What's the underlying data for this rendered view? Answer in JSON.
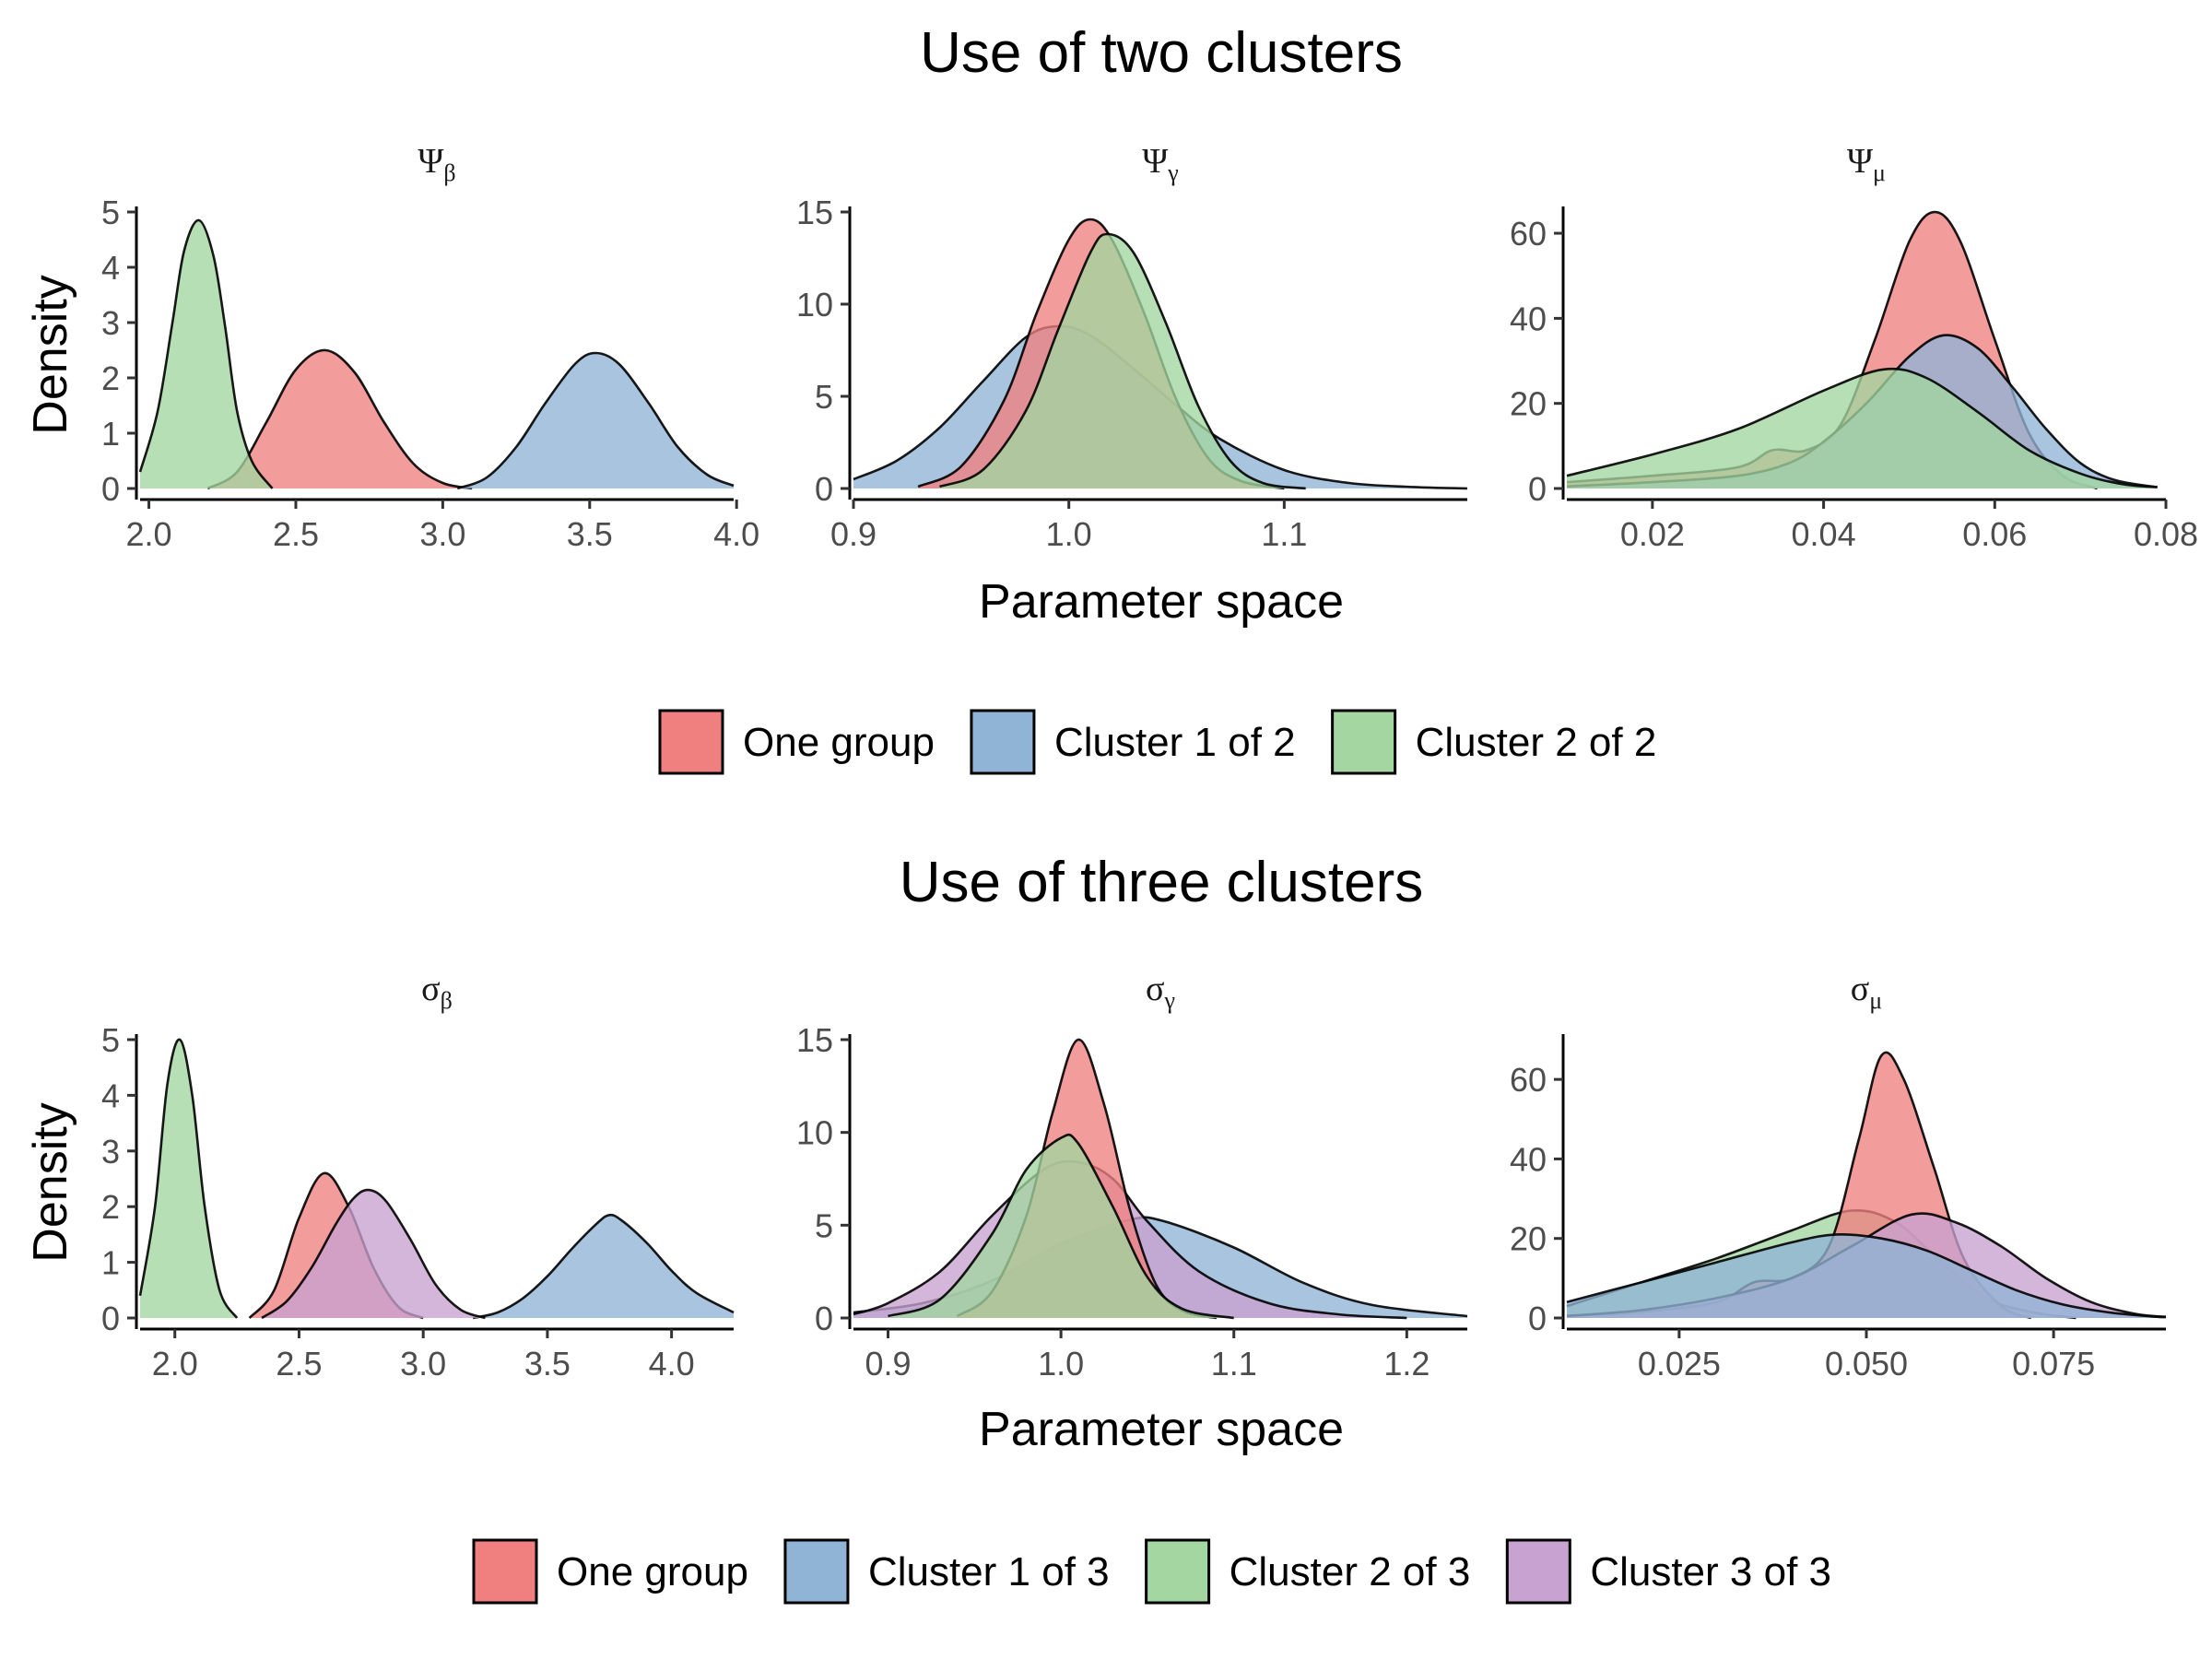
{
  "colors": {
    "one_group": "#F08080",
    "cluster_1": "#8FB4D6",
    "cluster_2": "#A3D6A0",
    "cluster_3": "#C8A2D0"
  },
  "chart_data": [
    {
      "type": "area",
      "section_title": "Use of two clusters",
      "xlabel": "Parameter space",
      "ylabel": "Density",
      "legend_position": "bottom",
      "legend": [
        {
          "key": "one_group",
          "label": "One group"
        },
        {
          "key": "cluster_1",
          "label": "Cluster 1 of 2"
        },
        {
          "key": "cluster_2",
          "label": "Cluster 2 of 2"
        }
      ],
      "panels": [
        {
          "title_base": "Ψ",
          "title_sub": "β",
          "xlim": [
            1.97,
            3.99
          ],
          "ylim": [
            0,
            5
          ],
          "xticks": [
            2.0,
            2.5,
            3.0,
            3.5,
            4.0
          ],
          "xtick_labels": [
            "2.0",
            "2.5",
            "3.0",
            "3.5",
            "4.0"
          ],
          "yticks": [
            0,
            1,
            2,
            3,
            4,
            5
          ],
          "ytick_labels": [
            "0",
            "1",
            "2",
            "3",
            "4",
            "5"
          ],
          "series": [
            {
              "key": "one_group",
              "x": [
                2.2,
                2.3,
                2.4,
                2.5,
                2.6,
                2.7,
                2.8,
                2.9,
                3.0,
                3.1
              ],
              "y": [
                0,
                0.3,
                1.2,
                2.15,
                2.5,
                2.1,
                1.2,
                0.45,
                0.1,
                0
              ]
            },
            {
              "key": "cluster_1",
              "x": [
                3.05,
                3.15,
                3.25,
                3.35,
                3.45,
                3.52,
                3.6,
                3.7,
                3.8,
                3.9,
                3.99
              ],
              "y": [
                0,
                0.2,
                0.75,
                1.55,
                2.25,
                2.45,
                2.25,
                1.55,
                0.75,
                0.25,
                0.05
              ]
            },
            {
              "key": "cluster_2",
              "x": [
                1.97,
                2.03,
                2.08,
                2.12,
                2.17,
                2.22,
                2.26,
                2.3,
                2.35,
                2.42
              ],
              "y": [
                0.3,
                1.4,
                3.0,
                4.3,
                4.85,
                4.2,
                2.9,
                1.4,
                0.5,
                0
              ]
            }
          ]
        },
        {
          "title_base": "Ψ",
          "title_sub": "γ",
          "xlim": [
            0.9,
            1.185
          ],
          "ylim": [
            0,
            15
          ],
          "xticks": [
            0.9,
            1.0,
            1.1
          ],
          "xtick_labels": [
            "0.9",
            "1.0",
            "1.1"
          ],
          "yticks": [
            0,
            5,
            10,
            15
          ],
          "ytick_labels": [
            "0",
            "5",
            "10",
            "15"
          ],
          "series": [
            {
              "key": "cluster_1",
              "x": [
                0.9,
                0.92,
                0.94,
                0.96,
                0.98,
                0.995,
                1.01,
                1.03,
                1.05,
                1.07,
                1.1,
                1.13,
                1.16,
                1.185
              ],
              "y": [
                0.5,
                1.5,
                3.3,
                5.8,
                8.2,
                8.8,
                8.3,
                6.5,
                4.5,
                2.7,
                1.0,
                0.3,
                0.08,
                0
              ]
            },
            {
              "key": "one_group",
              "x": [
                0.93,
                0.95,
                0.97,
                0.985,
                1.0,
                1.01,
                1.02,
                1.035,
                1.05,
                1.065,
                1.08,
                1.1
              ],
              "y": [
                0.1,
                1.2,
                4.8,
                9.5,
                13.5,
                14.6,
                13.5,
                9.5,
                4.8,
                1.6,
                0.4,
                0
              ]
            },
            {
              "key": "cluster_2",
              "x": [
                0.94,
                0.96,
                0.98,
                0.995,
                1.01,
                1.018,
                1.03,
                1.045,
                1.06,
                1.075,
                1.09,
                1.11
              ],
              "y": [
                0.1,
                1.0,
                4.2,
                8.6,
                12.8,
                13.8,
                12.8,
                9.0,
                4.5,
                1.5,
                0.3,
                0
              ]
            }
          ]
        },
        {
          "title_base": "Ψ",
          "title_sub": "μ",
          "xlim": [
            0.01,
            0.08
          ],
          "ylim": [
            0,
            65
          ],
          "xticks": [
            0.02,
            0.04,
            0.06,
            0.08
          ],
          "xtick_labels": [
            "0.02",
            "0.04",
            "0.06",
            "0.08"
          ],
          "yticks": [
            0,
            20,
            40,
            60
          ],
          "ytick_labels": [
            "0",
            "20",
            "40",
            "60"
          ],
          "series": [
            {
              "key": "one_group",
              "x": [
                0.01,
                0.02,
                0.03,
                0.034,
                0.038,
                0.042,
                0.046,
                0.05,
                0.053,
                0.056,
                0.06,
                0.064,
                0.068,
                0.072
              ],
              "y": [
                1.5,
                3,
                5,
                9,
                9,
                15,
                35,
                58,
                65,
                58,
                35,
                13,
                3,
                0
              ]
            },
            {
              "key": "cluster_1",
              "x": [
                0.01,
                0.02,
                0.03,
                0.036,
                0.04,
                0.045,
                0.05,
                0.054,
                0.058,
                0.062,
                0.066,
                0.07,
                0.074,
                0.079
              ],
              "y": [
                0.5,
                1.5,
                3,
                6,
                11,
                20,
                31,
                36,
                33,
                24,
                14,
                6,
                2,
                0.3
              ]
            },
            {
              "key": "cluster_2",
              "x": [
                0.01,
                0.02,
                0.03,
                0.04,
                0.047,
                0.052,
                0.058,
                0.064,
                0.07,
                0.075,
                0.079
              ],
              "y": [
                3,
                8,
                14,
                23,
                28,
                26,
                18,
                9,
                3.5,
                1,
                0.3
              ]
            }
          ]
        }
      ]
    },
    {
      "type": "area",
      "section_title": "Use of three clusters",
      "xlabel": "Parameter space",
      "ylabel": "Density",
      "legend_position": "bottom",
      "legend": [
        {
          "key": "one_group",
          "label": "One group"
        },
        {
          "key": "cluster_1",
          "label": "Cluster 1 of 3"
        },
        {
          "key": "cluster_2",
          "label": "Cluster 2 of 3"
        },
        {
          "key": "cluster_3",
          "label": "Cluster 3 of 3"
        }
      ],
      "panels": [
        {
          "title_base": "σ",
          "title_sub": "β",
          "xlim": [
            1.86,
            4.25
          ],
          "ylim": [
            0,
            5
          ],
          "xticks": [
            2.0,
            2.5,
            3.0,
            3.5,
            4.0
          ],
          "xtick_labels": [
            "2.0",
            "2.5",
            "3.0",
            "3.5",
            "4.0"
          ],
          "yticks": [
            0,
            1,
            2,
            3,
            4,
            5
          ],
          "ytick_labels": [
            "0",
            "1",
            "2",
            "3",
            "4",
            "5"
          ],
          "series": [
            {
              "key": "one_group",
              "x": [
                2.3,
                2.4,
                2.5,
                2.6,
                2.7,
                2.8,
                2.9,
                3.0
              ],
              "y": [
                0,
                0.5,
                1.8,
                2.6,
                2.0,
                0.9,
                0.2,
                0
              ]
            },
            {
              "key": "cluster_1",
              "x": [
                3.2,
                3.3,
                3.4,
                3.5,
                3.6,
                3.7,
                3.75,
                3.8,
                3.9,
                4.0,
                4.1,
                4.25
              ],
              "y": [
                0,
                0.1,
                0.35,
                0.75,
                1.25,
                1.7,
                1.85,
                1.75,
                1.35,
                0.85,
                0.45,
                0.1
              ]
            },
            {
              "key": "cluster_2",
              "x": [
                1.86,
                1.92,
                1.97,
                2.02,
                2.07,
                2.12,
                2.18,
                2.25
              ],
              "y": [
                0.4,
                2.0,
                4.2,
                5.0,
                4.0,
                2.0,
                0.5,
                0
              ]
            },
            {
              "key": "cluster_3",
              "x": [
                2.35,
                2.45,
                2.55,
                2.65,
                2.72,
                2.78,
                2.85,
                2.95,
                3.05,
                3.15,
                3.25
              ],
              "y": [
                0,
                0.3,
                0.9,
                1.7,
                2.15,
                2.3,
                2.1,
                1.4,
                0.6,
                0.15,
                0
              ]
            }
          ]
        },
        {
          "title_base": "σ",
          "title_sub": "γ",
          "xlim": [
            0.88,
            1.235
          ],
          "ylim": [
            0,
            15
          ],
          "xticks": [
            0.9,
            1.0,
            1.1,
            1.2
          ],
          "xtick_labels": [
            "0.9",
            "1.0",
            "1.1",
            "1.2"
          ],
          "yticks": [
            0,
            5,
            10,
            15
          ],
          "ytick_labels": [
            "0",
            "5",
            "10",
            "15"
          ],
          "series": [
            {
              "key": "cluster_1",
              "x": [
                0.88,
                0.92,
                0.96,
                1.0,
                1.04,
                1.06,
                1.1,
                1.14,
                1.18,
                1.235
              ],
              "y": [
                0.3,
                0.8,
                2.0,
                4.0,
                5.3,
                5.2,
                3.8,
                1.9,
                0.7,
                0.1
              ]
            },
            {
              "key": "cluster_3",
              "x": [
                0.88,
                0.9,
                0.93,
                0.96,
                0.99,
                1.01,
                1.03,
                1.05,
                1.08,
                1.12,
                1.16,
                1.2
              ],
              "y": [
                0.2,
                0.8,
                2.5,
                5.5,
                8.0,
                8.4,
                7.5,
                5.2,
                2.5,
                0.8,
                0.2,
                0
              ]
            },
            {
              "key": "one_group",
              "x": [
                0.94,
                0.96,
                0.98,
                0.995,
                1.01,
                1.025,
                1.04,
                1.055,
                1.07,
                1.09
              ],
              "y": [
                0.1,
                1.4,
                5.5,
                11.0,
                15.0,
                11.5,
                5.8,
                1.8,
                0.4,
                0
              ]
            },
            {
              "key": "cluster_2",
              "x": [
                0.9,
                0.93,
                0.96,
                0.98,
                1.0,
                1.01,
                1.03,
                1.05,
                1.07,
                1.1
              ],
              "y": [
                0.1,
                1.0,
                4.5,
                8.0,
                9.7,
                9.4,
                6.0,
                2.2,
                0.5,
                0
              ]
            }
          ]
        },
        {
          "title_base": "σ",
          "title_sub": "μ",
          "xlim": [
            0.01,
            0.09
          ],
          "ylim": [
            0,
            70
          ],
          "xticks": [
            0.025,
            0.05,
            0.075
          ],
          "xtick_labels": [
            "0.025",
            "0.050",
            "0.075"
          ],
          "yticks": [
            0,
            20,
            40,
            60
          ],
          "ytick_labels": [
            "0",
            "20",
            "40",
            "60"
          ],
          "series": [
            {
              "key": "cluster_2",
              "x": [
                0.01,
                0.02,
                0.03,
                0.04,
                0.048,
                0.054,
                0.06,
                0.066,
                0.072,
                0.078
              ],
              "y": [
                3,
                9,
                15,
                22,
                27,
                24,
                14,
                5,
                1.5,
                0
              ]
            },
            {
              "key": "one_group",
              "x": [
                0.01,
                0.02,
                0.03,
                0.035,
                0.04,
                0.045,
                0.049,
                0.052,
                0.055,
                0.059,
                0.063,
                0.068,
                0.072
              ],
              "y": [
                0.5,
                1.5,
                4,
                9,
                10,
                18,
                45,
                66,
                60,
                38,
                15,
                3,
                0
              ]
            },
            {
              "key": "cluster_3",
              "x": [
                0.01,
                0.02,
                0.03,
                0.04,
                0.048,
                0.056,
                0.062,
                0.068,
                0.074,
                0.08,
                0.086,
                0.09
              ],
              "y": [
                0.5,
                2,
                5,
                10,
                18,
                26,
                24,
                18,
                10,
                4,
                1,
                0.3
              ]
            },
            {
              "key": "cluster_1",
              "x": [
                0.01,
                0.02,
                0.03,
                0.04,
                0.046,
                0.052,
                0.058,
                0.064,
                0.07,
                0.076,
                0.082,
                0.088,
                0.09
              ],
              "y": [
                4,
                9,
                14,
                19,
                21,
                20,
                17,
                12,
                7,
                3.5,
                1.5,
                0.4,
                0.2
              ]
            }
          ]
        }
      ]
    }
  ]
}
